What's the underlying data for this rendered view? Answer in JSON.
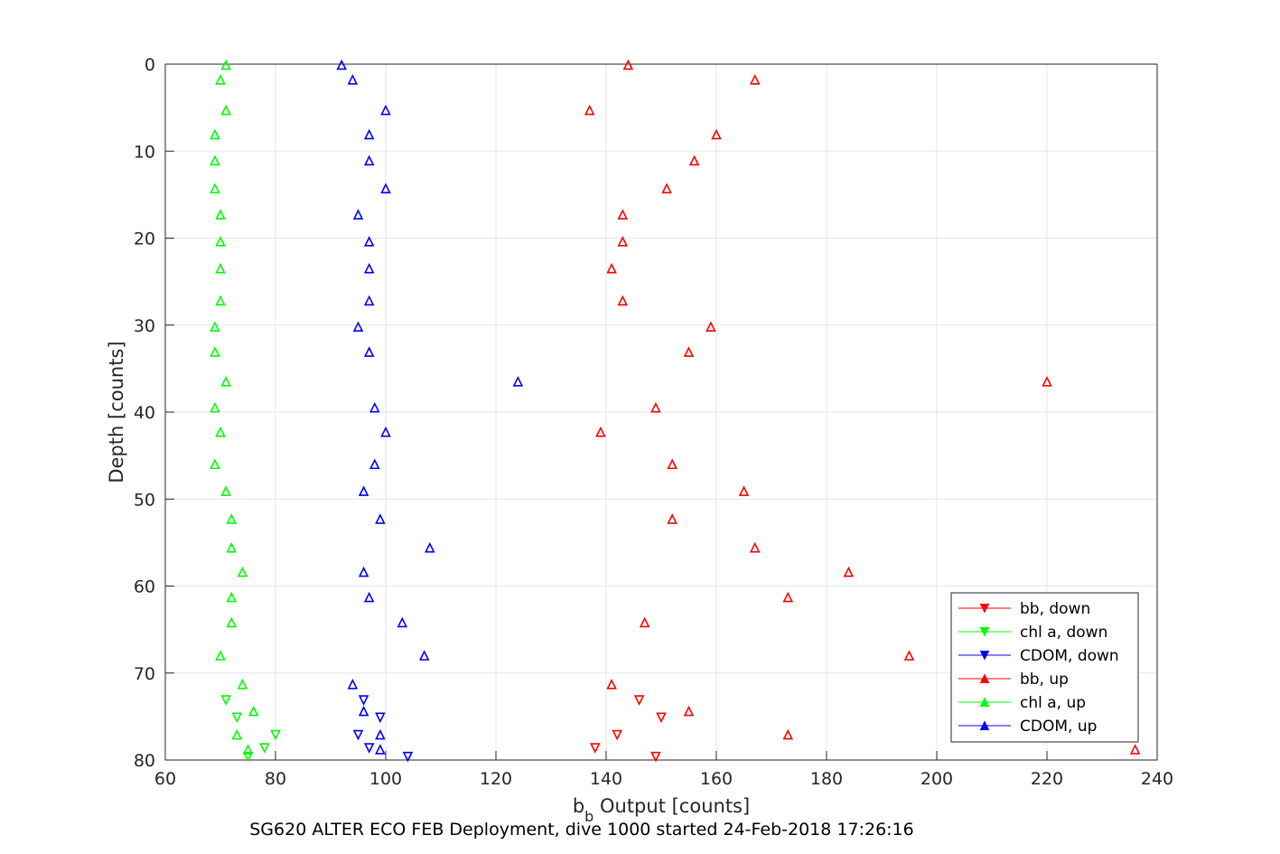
{
  "chart_data": {
    "type": "scatter",
    "xlabel_main": "b",
    "xlabel_sub": "b",
    "xlabel_rest": " Output [counts]",
    "ylabel": "Depth [counts]",
    "caption": "SG620 ALTER ECO FEB Deployment, dive 1000 started 24-Feb-2018 17:26:16",
    "xlim": [
      60,
      240
    ],
    "ylim": [
      0,
      80
    ],
    "y_reversed": true,
    "xticks": [
      60,
      80,
      100,
      120,
      140,
      160,
      180,
      200,
      220,
      240
    ],
    "yticks": [
      0,
      10,
      20,
      30,
      40,
      50,
      60,
      70,
      80
    ],
    "grid": true,
    "legend_position": "bottom-right",
    "series": [
      {
        "name": "bb, down",
        "color": "#ff0000",
        "marker": "triangle-down",
        "points": [
          [
            146,
            73.1
          ],
          [
            150,
            75.1
          ],
          [
            142,
            77.1
          ],
          [
            138,
            78.6
          ],
          [
            149,
            79.6
          ]
        ]
      },
      {
        "name": "chl a, down",
        "color": "#00ff00",
        "marker": "triangle-down",
        "points": [
          [
            71,
            73.1
          ],
          [
            73,
            75.1
          ],
          [
            80,
            77.1
          ],
          [
            78,
            78.6
          ],
          [
            75,
            79.6
          ]
        ]
      },
      {
        "name": "CDOM, down",
        "color": "#0000ff",
        "marker": "triangle-down",
        "points": [
          [
            96,
            73.1
          ],
          [
            99,
            75.1
          ],
          [
            95,
            77.1
          ],
          [
            97,
            78.6
          ],
          [
            104,
            79.6
          ]
        ]
      },
      {
        "name": "bb, up",
        "color": "#ff0000",
        "marker": "triangle-up",
        "points": [
          [
            144,
            0.1
          ],
          [
            167,
            1.8
          ],
          [
            137,
            5.3
          ],
          [
            160,
            8.1
          ],
          [
            156,
            11.1
          ],
          [
            151,
            14.3
          ],
          [
            143,
            17.3
          ],
          [
            143,
            20.4
          ],
          [
            141,
            23.5
          ],
          [
            143,
            27.2
          ],
          [
            159,
            30.2
          ],
          [
            155,
            33.1
          ],
          [
            220,
            36.5
          ],
          [
            149,
            39.5
          ],
          [
            139,
            42.3
          ],
          [
            152,
            46.0
          ],
          [
            165,
            49.1
          ],
          [
            152,
            52.3
          ],
          [
            167,
            55.6
          ],
          [
            184,
            58.4
          ],
          [
            173,
            61.3
          ],
          [
            147,
            64.2
          ],
          [
            195,
            68.0
          ],
          [
            141,
            71.3
          ],
          [
            155,
            74.4
          ],
          [
            173,
            77.1
          ],
          [
            236,
            78.8
          ]
        ]
      },
      {
        "name": "chl a, up",
        "color": "#00ff00",
        "marker": "triangle-up",
        "points": [
          [
            71,
            0.1
          ],
          [
            70,
            1.8
          ],
          [
            71,
            5.3
          ],
          [
            69,
            8.1
          ],
          [
            69,
            11.1
          ],
          [
            69,
            14.3
          ],
          [
            70,
            17.3
          ],
          [
            70,
            20.4
          ],
          [
            70,
            23.5
          ],
          [
            70,
            27.2
          ],
          [
            69,
            30.2
          ],
          [
            69,
            33.1
          ],
          [
            71,
            36.5
          ],
          [
            69,
            39.5
          ],
          [
            70,
            42.3
          ],
          [
            69,
            46.0
          ],
          [
            71,
            49.1
          ],
          [
            72,
            52.3
          ],
          [
            72,
            55.6
          ],
          [
            74,
            58.4
          ],
          [
            72,
            61.3
          ],
          [
            72,
            64.2
          ],
          [
            70,
            68.0
          ],
          [
            74,
            71.3
          ],
          [
            76,
            74.4
          ],
          [
            73,
            77.1
          ],
          [
            75,
            78.8
          ]
        ]
      },
      {
        "name": "CDOM, up",
        "color": "#0000ff",
        "marker": "triangle-up",
        "points": [
          [
            92,
            0.1
          ],
          [
            94,
            1.8
          ],
          [
            100,
            5.3
          ],
          [
            97,
            8.1
          ],
          [
            97,
            11.1
          ],
          [
            100,
            14.3
          ],
          [
            95,
            17.3
          ],
          [
            97,
            20.4
          ],
          [
            97,
            23.5
          ],
          [
            97,
            27.2
          ],
          [
            95,
            30.2
          ],
          [
            97,
            33.1
          ],
          [
            124,
            36.5
          ],
          [
            98,
            39.5
          ],
          [
            100,
            42.3
          ],
          [
            98,
            46.0
          ],
          [
            96,
            49.1
          ],
          [
            99,
            52.3
          ],
          [
            108,
            55.6
          ],
          [
            96,
            58.4
          ],
          [
            97,
            61.3
          ],
          [
            103,
            64.2
          ],
          [
            107,
            68.0
          ],
          [
            94,
            71.3
          ],
          [
            96,
            74.4
          ],
          [
            99,
            77.1
          ],
          [
            99,
            78.8
          ]
        ]
      }
    ]
  }
}
